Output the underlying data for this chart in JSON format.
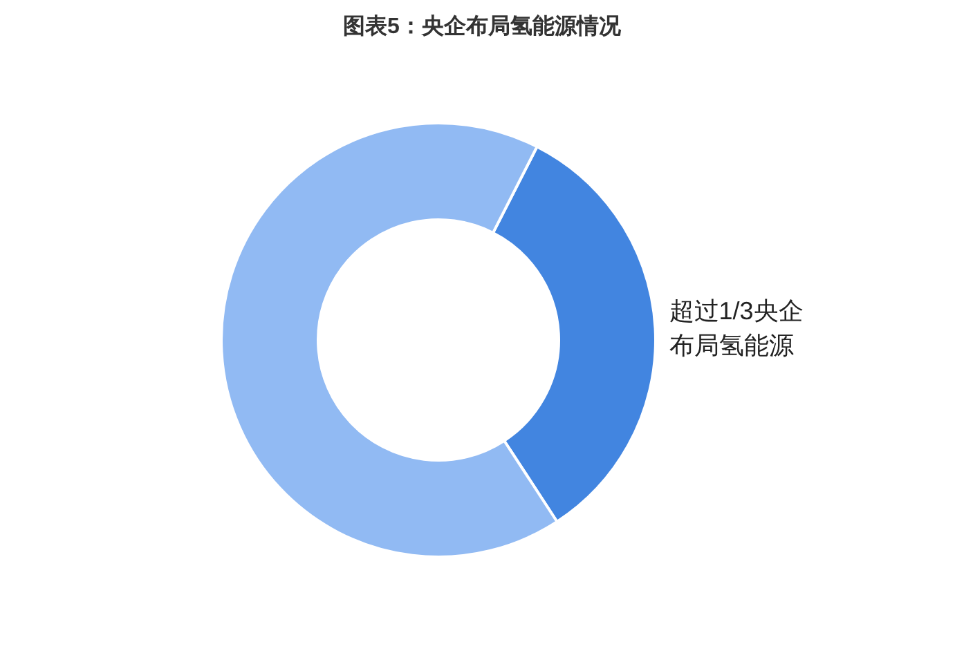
{
  "chart_data": {
    "type": "donut",
    "title": "图表5：央企布局氢能源情况",
    "categories": [
      "超过1/3央企布局氢能源",
      null
    ],
    "values": [
      33.3,
      66.7
    ],
    "colors": [
      "#4285e0",
      "#91baf3"
    ]
  }
}
